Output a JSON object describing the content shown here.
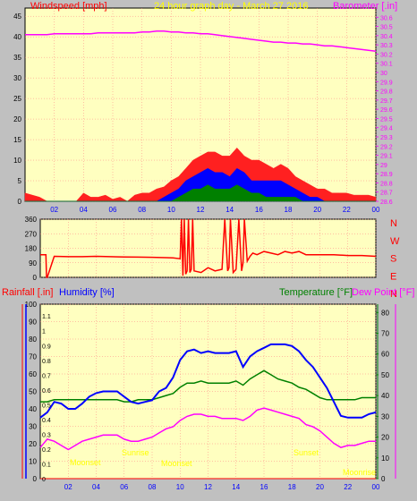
{
  "colors": {
    "background": "#c0c0c0",
    "plot_bg": "#ffffc0",
    "grid": "#ff8080",
    "wind": "#ff0000",
    "gust": "#ff2020",
    "wind_blue": "#0000ff",
    "wind_green": "#008000",
    "barometer": "#ff00ff",
    "direction": "#ff0000",
    "humidity": "#0000ff",
    "temperature": "#008000",
    "dewpoint": "#ff00ff",
    "rainfall": "#ff0000",
    "title": "#ffff00",
    "x_tick": "#0000ff"
  },
  "chart_data": [
    {
      "type": "line",
      "name_key": "wind-barometer",
      "title": "24 hour graph day - March 27 2016",
      "left_axis_label": "Windspeed [mph]",
      "right_axis_label": "Barometer [.in]",
      "x_ticks": [
        "02",
        "04",
        "06",
        "08",
        "10",
        "12",
        "14",
        "16",
        "18",
        "20",
        "22",
        "00"
      ],
      "left_ticks": [
        "0",
        "5",
        "10",
        "15",
        "20",
        "25",
        "30",
        "35",
        "40",
        "45"
      ],
      "left_ylim": [
        0,
        47
      ],
      "right_ticks": [
        "28.6",
        "28.7",
        "28.8",
        "28.9",
        "29",
        "29.1",
        "29.2",
        "29.3",
        "29.4",
        "29.5",
        "29.6",
        "29.7",
        "29.8",
        "29.9",
        "30",
        "30.1",
        "30.2",
        "30.3",
        "30.4",
        "30.5",
        "30.6"
      ],
      "right_ylim": [
        28.6,
        30.7
      ],
      "x_hours": [
        0,
        0.5,
        1,
        1.5,
        2,
        2.5,
        3,
        3.5,
        4,
        4.5,
        5,
        5.5,
        6,
        6.5,
        7,
        7.5,
        8,
        8.5,
        9,
        9.5,
        10,
        10.5,
        11,
        11.5,
        12,
        12.5,
        13,
        13.5,
        14,
        14.5,
        15,
        15.5,
        16,
        16.5,
        17,
        17.5,
        18,
        18.5,
        19,
        19.5,
        20,
        20.5,
        21,
        21.5,
        22,
        22.5,
        23,
        23.5,
        24
      ],
      "barometer": [
        30.41,
        30.41,
        30.41,
        30.41,
        30.42,
        30.42,
        30.42,
        30.42,
        30.42,
        30.42,
        30.43,
        30.43,
        30.43,
        30.43,
        30.43,
        30.43,
        30.44,
        30.44,
        30.45,
        30.45,
        30.44,
        30.44,
        30.43,
        30.43,
        30.42,
        30.42,
        30.41,
        30.4,
        30.39,
        30.38,
        30.37,
        30.36,
        30.35,
        30.34,
        30.33,
        30.33,
        30.32,
        30.32,
        30.31,
        30.31,
        30.3,
        30.29,
        30.29,
        30.28,
        30.27,
        30.26,
        30.25,
        30.24,
        30.23
      ],
      "gust": [
        2,
        1.5,
        1,
        0,
        0,
        0,
        0,
        0,
        2,
        1,
        1,
        1.5,
        0.5,
        1,
        0,
        1.5,
        2,
        2,
        3,
        3.5,
        5,
        6,
        8,
        10,
        11,
        12,
        12,
        11,
        11,
        13,
        11,
        10,
        10,
        9,
        8,
        9,
        8,
        6,
        5,
        4,
        3,
        3,
        2,
        2,
        2,
        1.5,
        1.5,
        1.5,
        1
      ],
      "wind_avg": [
        0,
        0,
        0,
        0,
        0,
        0,
        0,
        0,
        0,
        0,
        0,
        0,
        0,
        0,
        0,
        0,
        0,
        0,
        0,
        1,
        2,
        3,
        5,
        6,
        7,
        8,
        7,
        7,
        6,
        8,
        7,
        5,
        5,
        5,
        5,
        5,
        4,
        3,
        2,
        1,
        1,
        0,
        0,
        0,
        0,
        0,
        0,
        0,
        0
      ],
      "wind_low": [
        0,
        0,
        0,
        0,
        0,
        0,
        0,
        0,
        0,
        0,
        0,
        0,
        0,
        0,
        0,
        0,
        0,
        0,
        0,
        0,
        0,
        1,
        2,
        3,
        3,
        4,
        3,
        3,
        3,
        4,
        3,
        2,
        2,
        1,
        1,
        1,
        1,
        1,
        0,
        0,
        0,
        0,
        0,
        0,
        0,
        0,
        0,
        0,
        0
      ]
    },
    {
      "type": "line",
      "name_key": "wind-direction",
      "left_ticks": [
        "0",
        "90",
        "180",
        "270",
        "360"
      ],
      "left_ylim": [
        0,
        360
      ],
      "right_labels": [
        "N",
        "W",
        "S",
        "E",
        "N"
      ],
      "x_hours": [
        0,
        0.25,
        0.4,
        0.45,
        0.5,
        1,
        2,
        3,
        4,
        5,
        6,
        7,
        8,
        9,
        9.5,
        10,
        10.1,
        10.2,
        10.3,
        10.4,
        10.5,
        10.6,
        10.7,
        10.8,
        10.9,
        11,
        11.5,
        12,
        12.5,
        13,
        13.2,
        13.4,
        13.5,
        13.6,
        13.8,
        14,
        14.2,
        14.4,
        14.5,
        14.6,
        14.8,
        15,
        15.2,
        15.5,
        16,
        16.5,
        17,
        17.5,
        18,
        18.5,
        19,
        20,
        21,
        22,
        23,
        24
      ],
      "direction": [
        140,
        140,
        140,
        0,
        0,
        130,
        128,
        128,
        130,
        128,
        126,
        125,
        124,
        122,
        120,
        115,
        360,
        10,
        360,
        20,
        40,
        360,
        30,
        50,
        360,
        40,
        30,
        60,
        40,
        50,
        360,
        40,
        60,
        360,
        30,
        50,
        360,
        40,
        90,
        360,
        100,
        130,
        150,
        140,
        160,
        150,
        140,
        160,
        150,
        160,
        140,
        140,
        140,
        135,
        135,
        130
      ]
    },
    {
      "type": "line",
      "name_key": "humidity-temperature",
      "left_axis_label": "Rainfall [.in]",
      "left2_axis_label": "Humidity [%]",
      "right_axis_label": "Temperature [°F]",
      "right2_axis_label": "Dew Point [°F]",
      "x_ticks": [
        "02",
        "04",
        "06",
        "08",
        "10",
        "12",
        "14",
        "16",
        "18",
        "20",
        "22",
        "00"
      ],
      "rain_ticks": [
        "0",
        "0.1",
        "0.2",
        "0.3",
        "0.4",
        "0.5",
        "0.6",
        "0.7",
        "0.8",
        "0.9",
        "1",
        "1.1"
      ],
      "rain_ylim": [
        0,
        1.18
      ],
      "humidity_ticks": [
        "0",
        "10",
        "20",
        "30",
        "40",
        "50",
        "60",
        "70",
        "80",
        "90",
        "100"
      ],
      "humidity_ylim": [
        0,
        100
      ],
      "temp_ticks": [
        "0",
        "10",
        "20",
        "30",
        "40",
        "50",
        "60",
        "70",
        "80"
      ],
      "temp_ylim": [
        0,
        84
      ],
      "annotations": [
        "Moonset",
        "Sunrise",
        "Moonset",
        "Sunset",
        "Moonrise"
      ],
      "x_hours": [
        0,
        0.5,
        1,
        1.5,
        2,
        2.5,
        3,
        3.5,
        4,
        4.5,
        5,
        5.5,
        6,
        6.5,
        7,
        7.5,
        8,
        8.5,
        9,
        9.5,
        10,
        10.5,
        11,
        11.5,
        12,
        12.5,
        13,
        13.5,
        14,
        14.5,
        15,
        15.5,
        16,
        16.5,
        17,
        17.5,
        18,
        18.5,
        19,
        19.5,
        20,
        20.5,
        21,
        21.5,
        22,
        22.5,
        23,
        23.5,
        24
      ],
      "humidity": [
        35,
        38,
        44,
        43,
        40,
        40,
        43,
        47,
        49,
        50,
        50,
        50,
        47,
        44,
        43,
        44,
        45,
        50,
        52,
        58,
        68,
        73,
        74,
        72,
        73,
        72,
        72,
        72,
        73,
        64,
        70,
        73,
        75,
        77,
        77,
        77,
        76,
        73,
        68,
        64,
        58,
        52,
        44,
        36,
        35,
        35,
        35,
        37,
        38
      ],
      "temperature": [
        37,
        37,
        38,
        38,
        38,
        38,
        38,
        38,
        38,
        38,
        38,
        38,
        37,
        37,
        38,
        38,
        38,
        39,
        40,
        41,
        44,
        46,
        46,
        47,
        46,
        46,
        46,
        46,
        47,
        45,
        48,
        50,
        52,
        50,
        48,
        47,
        46,
        44,
        43,
        41,
        39,
        38,
        38,
        38,
        38,
        38,
        39,
        39,
        39
      ],
      "dewpoint": [
        15,
        19,
        18,
        16,
        14,
        16,
        18,
        19,
        20,
        21,
        21,
        21,
        19,
        18,
        18,
        19,
        20,
        22,
        24,
        25,
        28,
        30,
        31,
        31,
        30,
        30,
        29,
        29,
        29,
        28,
        30,
        33,
        34,
        33,
        32,
        31,
        30,
        29,
        26,
        25,
        23,
        20,
        17,
        15,
        16,
        16,
        17,
        18,
        18
      ],
      "rainfall": [
        0,
        0,
        0,
        0,
        0,
        0,
        0,
        0,
        0,
        0,
        0,
        0,
        0,
        0,
        0,
        0,
        0,
        0,
        0,
        0,
        0,
        0,
        0,
        0,
        0,
        0,
        0,
        0,
        0,
        0,
        0,
        0,
        0,
        0,
        0,
        0,
        0,
        0,
        0,
        0,
        0,
        0,
        0,
        0,
        0,
        0,
        0,
        0,
        0
      ]
    }
  ]
}
